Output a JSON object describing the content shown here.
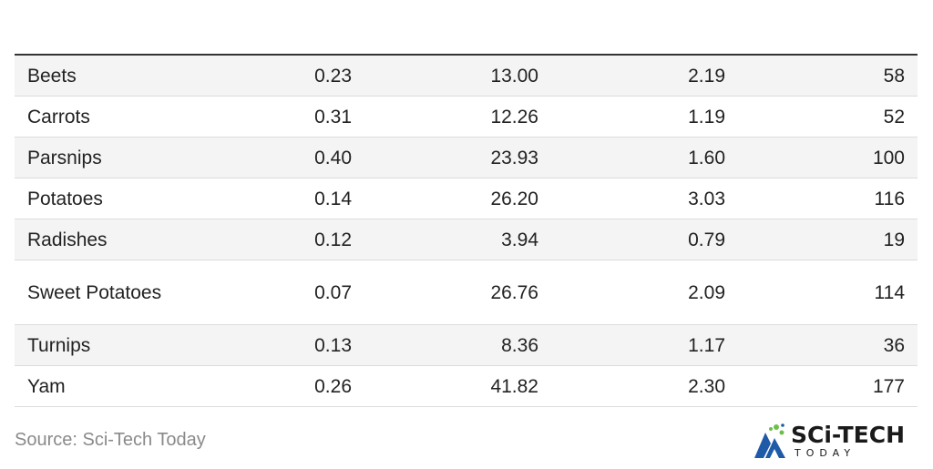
{
  "table": {
    "rows": [
      {
        "name": "Beets",
        "v1": "0.23",
        "v2": "13.00",
        "v3": "2.19",
        "v4": "58"
      },
      {
        "name": "Carrots",
        "v1": "0.31",
        "v2": "12.26",
        "v3": "1.19",
        "v4": "52"
      },
      {
        "name": "Parsnips",
        "v1": "0.40",
        "v2": "23.93",
        "v3": "1.60",
        "v4": "100"
      },
      {
        "name": "Potatoes",
        "v1": "0.14",
        "v2": "26.20",
        "v3": "3.03",
        "v4": "116"
      },
      {
        "name": "Radishes",
        "v1": "0.12",
        "v2": "3.94",
        "v3": "0.79",
        "v4": "19"
      },
      {
        "name": "Sweet Potatoes",
        "v1": "0.07",
        "v2": "26.76",
        "v3": "2.09",
        "v4": "114"
      },
      {
        "name": "Turnips",
        "v1": "0.13",
        "v2": "8.36",
        "v3": "1.17",
        "v4": "36"
      },
      {
        "name": "Yam",
        "v1": "0.26",
        "v2": "41.82",
        "v3": "2.30",
        "v4": "177"
      }
    ]
  },
  "footer": {
    "source": "Source: Sci-Tech Today",
    "logo_main": "SCi-TECH",
    "logo_sub": "TODAY"
  },
  "colors": {
    "accent_blue": "#1e5aa8",
    "accent_green": "#6cc04a"
  }
}
